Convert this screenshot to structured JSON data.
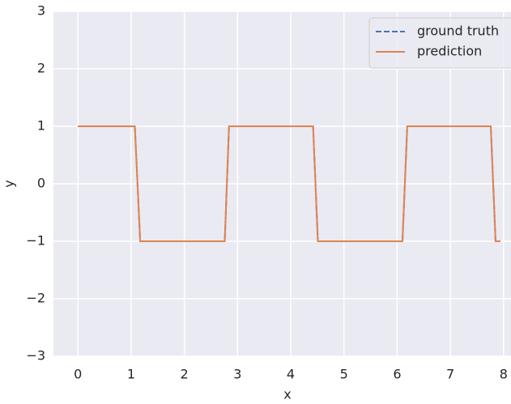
{
  "chart_data": {
    "type": "line",
    "x_label": "x",
    "y_label": "y",
    "x": [
      0,
      1.07,
      1.17,
      2.76,
      2.84,
      4.42,
      4.51,
      6.1,
      6.19,
      7.76,
      7.85,
      7.94
    ],
    "series": [
      {
        "name": "ground truth",
        "color": "#4c72b0",
        "style": "dashed",
        "values": [
          1,
          1,
          -1,
          -1,
          1,
          1,
          -1,
          -1,
          1,
          1,
          -1,
          -1
        ]
      },
      {
        "name": "prediction",
        "color": "#dd8452",
        "style": "solid",
        "values": [
          1,
          1,
          -1,
          -1,
          1,
          1,
          -1,
          -1,
          1,
          1,
          -1,
          -1
        ]
      }
    ],
    "xlim": [
      -0.46,
      8.14
    ],
    "ylim": [
      -3,
      3
    ],
    "xticks": [
      0,
      1,
      2,
      3,
      4,
      5,
      6,
      7,
      8
    ],
    "yticks": [
      {
        "value": -3,
        "label": "−3"
      },
      {
        "value": -2,
        "label": "−2"
      },
      {
        "value": -1,
        "label": "−1"
      },
      0,
      1,
      2,
      3
    ],
    "grid": true,
    "legend": "upper right"
  }
}
